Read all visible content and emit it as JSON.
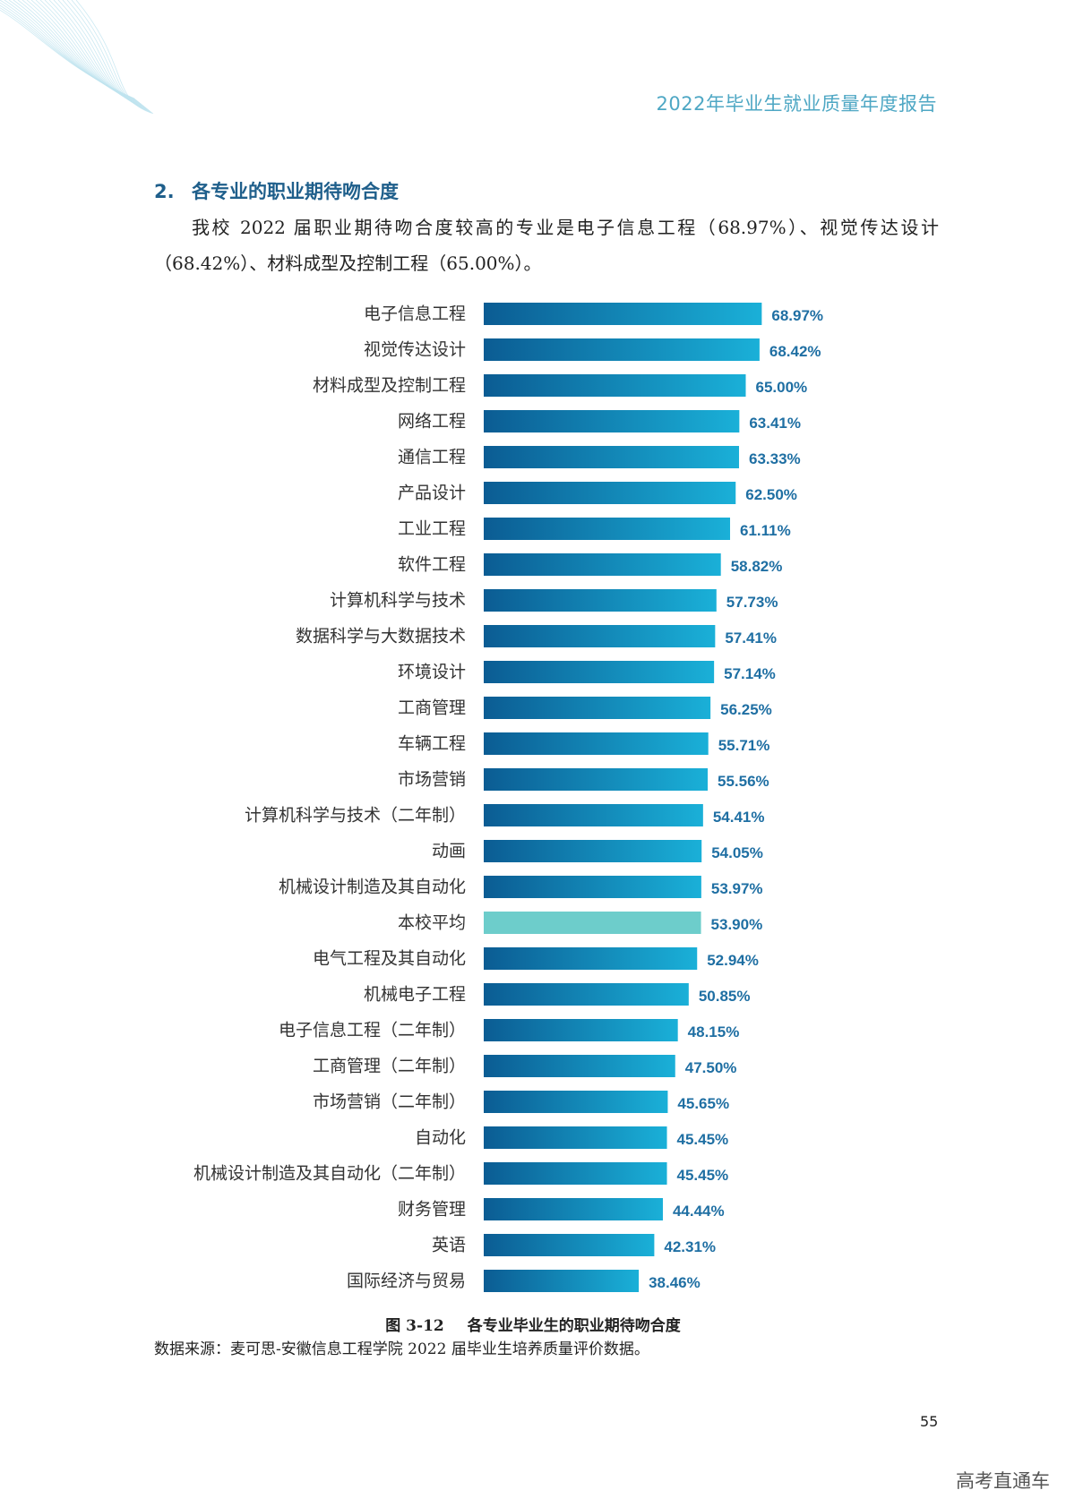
{
  "header": {
    "title": "2022年毕业生就业质量年度报告"
  },
  "section": {
    "number": "2.",
    "title": "各专业的职业期待吻合度"
  },
  "intro": {
    "text": "我校 2022 届职业期待吻合度较高的专业是电子信息工程（68.97%）、视觉传达设计（68.42%）、材料成型及控制工程（65.00%）。"
  },
  "chart_data": {
    "type": "bar",
    "orientation": "horizontal",
    "categories": [
      "电子信息工程",
      "视觉传达设计",
      "材料成型及控制工程",
      "网络工程",
      "通信工程",
      "产品设计",
      "工业工程",
      "软件工程",
      "计算机科学与技术",
      "数据科学与大数据技术",
      "环境设计",
      "工商管理",
      "车辆工程",
      "市场营销",
      "计算机科学与技术（二年制）",
      "动画",
      "机械设计制造及其自动化",
      "本校平均",
      "电气工程及其自动化",
      "机械电子工程",
      "电子信息工程（二年制）",
      "工商管理（二年制）",
      "市场营销（二年制）",
      "自动化",
      "机械设计制造及其自动化（二年制）",
      "财务管理",
      "英语",
      "国际经济与贸易"
    ],
    "values": [
      68.97,
      68.42,
      65.0,
      63.41,
      63.33,
      62.5,
      61.11,
      58.82,
      57.73,
      57.41,
      57.14,
      56.25,
      55.71,
      55.56,
      54.41,
      54.05,
      53.97,
      53.9,
      52.94,
      50.85,
      48.15,
      47.5,
      45.65,
      45.45,
      45.45,
      44.44,
      42.31,
      38.46
    ],
    "value_labels": [
      "68.97%",
      "68.42%",
      "65.00%",
      "63.41%",
      "63.33%",
      "62.50%",
      "61.11%",
      "58.82%",
      "57.73%",
      "57.41%",
      "57.14%",
      "56.25%",
      "55.71%",
      "55.56%",
      "54.41%",
      "54.05%",
      "53.97%",
      "53.90%",
      "52.94%",
      "50.85%",
      "48.15%",
      "47.50%",
      "45.65%",
      "45.45%",
      "45.45%",
      "44.44%",
      "42.31%",
      "38.46%"
    ],
    "highlight_category": "本校平均",
    "colors": {
      "bar_start": "#0b5c93",
      "bar_end": "#1ab0d8",
      "highlight": "#6dcdcb",
      "value_text": "#1f6fa3"
    },
    "xlim": [
      0,
      70
    ]
  },
  "caption": {
    "figure": "图 3-12",
    "title": "各专业毕业生的职业期待吻合度"
  },
  "source": {
    "text": "数据来源：麦可思-安徽信息工程学院 2022 届毕业生培养质量评价数据。"
  },
  "page": {
    "number": "55"
  },
  "watermark": {
    "text": "高考直通车"
  }
}
